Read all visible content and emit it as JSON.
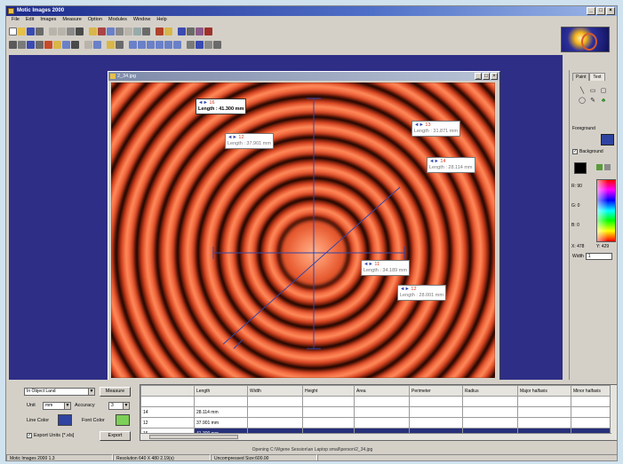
{
  "app": {
    "title": "Motic Images 2000"
  },
  "menu": [
    "File",
    "Edit",
    "Images",
    "Measure",
    "Option",
    "Modules",
    "Window",
    "Help"
  ],
  "window_controls": {
    "minimize": "_",
    "maximize": "□",
    "close": "×"
  },
  "image_window": {
    "title": "2_34.jpg"
  },
  "measurements": [
    {
      "id": "16",
      "arrows": "◄►",
      "length": "Length : 41.300 mm",
      "selected": true
    },
    {
      "id": "12",
      "arrows": "◄►",
      "length": "Length : 37.901 mm"
    },
    {
      "id": "13",
      "arrows": "◄►",
      "length": "Length : 31.871 mm"
    },
    {
      "id": "14",
      "arrows": "◄►",
      "length": "Length : 28.114 mm"
    },
    {
      "id": "11",
      "arrows": "◄►",
      "length": "Length : 34.189 mm"
    },
    {
      "id": "12",
      "arrows": "◄►",
      "length": "Length : 28.001 mm"
    }
  ],
  "palette": {
    "tabs": [
      "Paint",
      "Text"
    ],
    "tools": [
      "line-tool",
      "rectangle-tool",
      "rounded-rect-tool",
      "ellipse-tool",
      "pencil-tool",
      "fill-tool"
    ],
    "foreground_label": "Foreground",
    "background_label": "Background",
    "background_checked": true,
    "foreground_color": "#2f43a0",
    "r_label": "R: 90",
    "g_label": "G: 0",
    "b_label": "B: 0",
    "x_label": "X: 478",
    "y_label": "Y: 429",
    "width_label": "Width",
    "width_value": "1"
  },
  "bottom": {
    "object_select": "In Object Land",
    "measure_button": "Measure",
    "unit_label": "Unit",
    "unit_value": "mm",
    "accuracy_label": "Accuracy",
    "accuracy_value": "3",
    "line_color_label": "Line Color",
    "line_color": "#2f43a0",
    "font_color_label": "Font Color",
    "font_color": "#7ccf57",
    "export_units_label": "Export Units",
    "export_units_value": "[*.xls]",
    "export_checked": true,
    "export_button": "Export"
  },
  "table": {
    "columns": [
      "",
      "Length",
      "Width",
      "Height",
      "Area",
      "Perimeter",
      "Radius",
      "Major halfaxis",
      "Minor halfaxis"
    ],
    "rows": [
      {
        "id": "",
        "length": ""
      },
      {
        "id": "14",
        "length": "28.114 mm"
      },
      {
        "id": "12",
        "length": "37.901 mm"
      },
      {
        "id": "16",
        "length": "41.300 mm",
        "selected": true
      }
    ]
  },
  "status": {
    "opening": "Opening C:\\Wgene Session\\an Laptop small\\person\\2_34.jpg",
    "app_version": "Motic Images 2000 1.3",
    "resolution": "Resolution 640 X 480 2.19(s)",
    "uncompressed": "Uncompressed Size:600.00"
  },
  "accent_colors": {
    "workspace": "#2e2e86",
    "rings": "#f0683e",
    "overlay_lines": "#3244a6"
  }
}
